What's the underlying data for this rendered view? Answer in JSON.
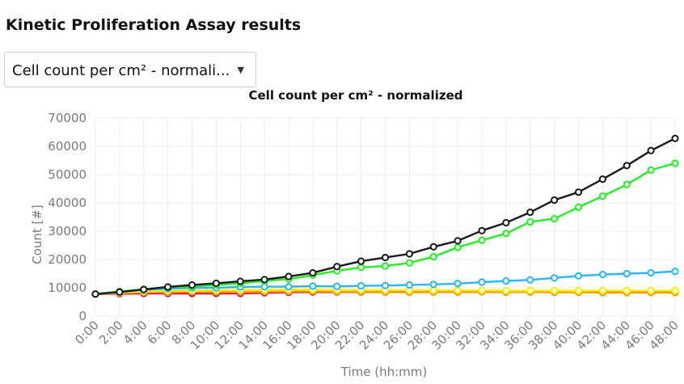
{
  "page": {
    "title": "Kinetic Proliferation Assay results"
  },
  "metric_select": {
    "value": "Cell count per cm² - normali...",
    "icon": "caret-down-icon"
  },
  "chart_data": {
    "type": "line",
    "title": "Cell count per cm² - normalized",
    "xlabel": "Time (hh:mm)",
    "ylabel": "Count [#]",
    "ylim": [
      0,
      70000
    ],
    "yticks": [
      0,
      10000,
      20000,
      30000,
      40000,
      50000,
      60000,
      70000
    ],
    "grid": true,
    "legend": "none",
    "categories": [
      "0:00",
      "2:00",
      "4:00",
      "6:00",
      "8:00",
      "10:00",
      "12:00",
      "14:00",
      "16:00",
      "18:00",
      "20:00",
      "22:00",
      "24:00",
      "26:00",
      "28:00",
      "30:00",
      "32:00",
      "34:00",
      "36:00",
      "38:00",
      "40:00",
      "42:00",
      "44:00",
      "46:00",
      "48:00"
    ],
    "series": [
      {
        "color": "#e01010",
        "values": [
          7800,
          7900,
          8000,
          8000,
          8000,
          8000,
          8000,
          8200,
          8400,
          8500,
          8500,
          8500,
          8500,
          8500,
          8500,
          8500,
          8600,
          8500,
          8500,
          8500,
          8500,
          8500,
          8500,
          8500,
          8500
        ]
      },
      {
        "color": "#cc00cc",
        "values": [
          7800,
          8000,
          8200,
          8200,
          8400,
          8300,
          8300,
          8400,
          8600,
          8800,
          8800,
          8800,
          8800,
          8800,
          8800,
          8800,
          8800,
          8700,
          8700,
          8700,
          8700,
          8800,
          8900,
          8900,
          8900
        ]
      },
      {
        "color": "#ff9900",
        "values": [
          7800,
          8100,
          8400,
          8400,
          8600,
          8500,
          8500,
          8600,
          8700,
          8800,
          8600,
          8600,
          8500,
          8400,
          8500,
          8500,
          8600,
          8500,
          8500,
          8400,
          8400,
          8300,
          8300,
          8300,
          8300
        ]
      },
      {
        "color": "#f2f200",
        "values": [
          7800,
          8300,
          8800,
          9000,
          9000,
          9100,
          9200,
          9200,
          9300,
          9300,
          9200,
          9200,
          9200,
          9100,
          9100,
          9100,
          9100,
          9000,
          9000,
          9000,
          9000,
          9000,
          9000,
          9000,
          9000
        ]
      },
      {
        "color": "#29b6f6",
        "values": [
          7800,
          8600,
          9300,
          9700,
          10000,
          10000,
          10300,
          10400,
          10400,
          10600,
          10500,
          10700,
          10800,
          11000,
          11200,
          11500,
          12000,
          12400,
          12800,
          13500,
          14200,
          14700,
          15000,
          15300,
          15800
        ]
      },
      {
        "color": "#22ee22",
        "values": [
          7800,
          8700,
          9500,
          10300,
          10500,
          11000,
          11600,
          12400,
          13100,
          14500,
          16000,
          17200,
          17700,
          18800,
          21000,
          24300,
          26800,
          29200,
          33300,
          34400,
          38500,
          42400,
          46500,
          51600,
          54000
        ]
      },
      {
        "color": "#1a1a1a",
        "values": [
          7800,
          8500,
          9400,
          10300,
          11000,
          11600,
          12300,
          12900,
          14000,
          15300,
          17500,
          19400,
          20700,
          22000,
          24500,
          26600,
          30200,
          33000,
          36700,
          41000,
          43800,
          48400,
          53200,
          58500,
          62800
        ]
      }
    ]
  }
}
